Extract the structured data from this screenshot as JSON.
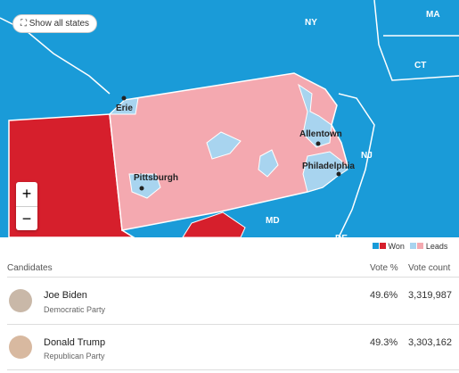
{
  "map": {
    "button": "Show all states",
    "state_labels": [
      "NY",
      "MA",
      "CT",
      "NJ",
      "MD",
      "DE"
    ],
    "city_labels": [
      "Erie",
      "Allentown",
      "Pittsburgh",
      "Philadelphia"
    ],
    "zoom": [
      "+",
      "−"
    ]
  },
  "legend": [
    "Won",
    "Leads"
  ],
  "table": {
    "header": [
      "Candidates",
      "Vote %",
      "Vote count"
    ],
    "rows": [
      [
        "Joe Biden",
        "Democratic Party",
        "49.6%",
        "3,319,987"
      ],
      [
        "Donald Trump",
        "Republican Party",
        "49.3%",
        "3,303,162"
      ]
    ]
  }
}
